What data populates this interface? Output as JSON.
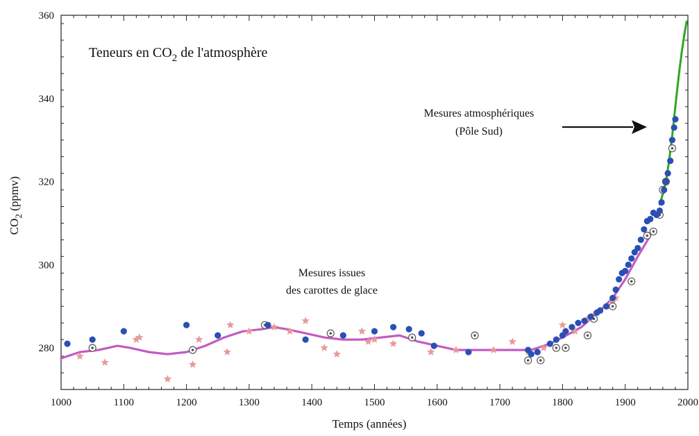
{
  "chart_data": {
    "type": "scatter",
    "title": "Teneurs en CO2 de l'atmosphère",
    "title_main": "Teneurs en CO",
    "title_sub": "2",
    "title_rest": " de l'atmosphère",
    "xlabel": "Temps (années)",
    "ylabel": "CO2 (ppmv)",
    "ylabel_main": "CO",
    "ylabel_sub": "2",
    "ylabel_rest": " (ppmv)",
    "xlim": [
      1000,
      2000
    ],
    "ylim": [
      270,
      360
    ],
    "x_ticks": [
      1000,
      1100,
      1200,
      1300,
      1400,
      1500,
      1600,
      1700,
      1800,
      1900,
      2000
    ],
    "y_ticks": [
      280,
      300,
      320,
      340,
      360
    ],
    "grid": false,
    "annotations": [
      {
        "lines": [
          "Mesures atmosphériques",
          "(Pôle Sud)"
        ],
        "arrow": true
      },
      {
        "lines": [
          "Mesures issues",
          "des carottes de glace"
        ],
        "arrow": false
      }
    ],
    "series": [
      {
        "marker": "filled-circle",
        "color": "#2a4fb5",
        "points": [
          [
            1010,
            281
          ],
          [
            1050,
            282
          ],
          [
            1100,
            284
          ],
          [
            1200,
            285.5
          ],
          [
            1250,
            283
          ],
          [
            1330,
            285.5
          ],
          [
            1390,
            282
          ],
          [
            1450,
            283
          ],
          [
            1500,
            284
          ],
          [
            1530,
            285
          ],
          [
            1555,
            284.5
          ],
          [
            1575,
            283.5
          ],
          [
            1595,
            280.5
          ],
          [
            1650,
            279
          ],
          [
            1745,
            279.5
          ],
          [
            1750,
            278.5
          ],
          [
            1760,
            279
          ],
          [
            1780,
            281
          ],
          [
            1790,
            282
          ],
          [
            1800,
            283
          ],
          [
            1805,
            284
          ],
          [
            1815,
            285
          ],
          [
            1825,
            286
          ],
          [
            1835,
            286.5
          ],
          [
            1845,
            287.5
          ],
          [
            1855,
            288.5
          ],
          [
            1860,
            289
          ],
          [
            1870,
            290
          ],
          [
            1880,
            292
          ],
          [
            1885,
            294
          ],
          [
            1890,
            296.5
          ],
          [
            1895,
            298
          ],
          [
            1900,
            298.5
          ],
          [
            1905,
            300
          ],
          [
            1910,
            301.5
          ],
          [
            1915,
            303
          ],
          [
            1920,
            304
          ],
          [
            1925,
            306
          ],
          [
            1930,
            308.5
          ],
          [
            1935,
            310.5
          ],
          [
            1940,
            311
          ],
          [
            1945,
            312.5
          ],
          [
            1950,
            312
          ],
          [
            1955,
            313
          ],
          [
            1958,
            315
          ],
          [
            1962,
            318
          ],
          [
            1965,
            320
          ],
          [
            1968,
            322
          ],
          [
            1972,
            325
          ],
          [
            1975,
            330
          ],
          [
            1978,
            333
          ],
          [
            1980,
            335
          ]
        ]
      },
      {
        "marker": "open-circle-dot",
        "color": "#555555",
        "points": [
          [
            1050,
            280
          ],
          [
            1210,
            279.5
          ],
          [
            1325,
            285.5
          ],
          [
            1430,
            283.5
          ],
          [
            1560,
            282.5
          ],
          [
            1660,
            283
          ],
          [
            1745,
            277
          ],
          [
            1765,
            277
          ],
          [
            1790,
            280
          ],
          [
            1805,
            280
          ],
          [
            1840,
            283
          ],
          [
            1850,
            287
          ],
          [
            1880,
            290
          ],
          [
            1910,
            296
          ],
          [
            1935,
            307
          ],
          [
            1945,
            308
          ],
          [
            1955,
            312
          ],
          [
            1960,
            318
          ],
          [
            1965,
            320
          ],
          [
            1975,
            328
          ]
        ]
      },
      {
        "marker": "star",
        "color": "#e89a9a",
        "points": [
          [
            1030,
            278
          ],
          [
            1070,
            276.5
          ],
          [
            1120,
            282
          ],
          [
            1125,
            282.5
          ],
          [
            1170,
            272.5
          ],
          [
            1210,
            276
          ],
          [
            1220,
            282
          ],
          [
            1265,
            279
          ],
          [
            1270,
            285.5
          ],
          [
            1300,
            284
          ],
          [
            1340,
            285
          ],
          [
            1365,
            284
          ],
          [
            1390,
            286.5
          ],
          [
            1420,
            280
          ],
          [
            1440,
            278.5
          ],
          [
            1480,
            284
          ],
          [
            1490,
            281.5
          ],
          [
            1500,
            282
          ],
          [
            1530,
            281
          ],
          [
            1590,
            279
          ],
          [
            1630,
            279.5
          ],
          [
            1690,
            279.5
          ],
          [
            1720,
            281.5
          ],
          [
            1745,
            279
          ],
          [
            1770,
            280
          ],
          [
            1800,
            285.5
          ],
          [
            1820,
            284
          ],
          [
            1840,
            287
          ],
          [
            1850,
            288
          ],
          [
            1860,
            289
          ],
          [
            1870,
            290
          ],
          [
            1880,
            291
          ],
          [
            1885,
            292
          ]
        ]
      }
    ],
    "lines": [
      {
        "name": "",
        "color": "#c45bc1",
        "x": [
          1000,
          1030,
          1060,
          1090,
          1110,
          1140,
          1170,
          1200,
          1230,
          1260,
          1290,
          1320,
          1340,
          1360,
          1390,
          1420,
          1450,
          1480,
          1510,
          1540,
          1570,
          1600,
          1630,
          1660,
          1690,
          1720,
          1750,
          1780,
          1800,
          1830,
          1860,
          1880,
          1900,
          1920,
          1940
        ],
        "y": [
          277.5,
          279,
          279.5,
          280.5,
          280,
          279,
          278.5,
          279,
          280.5,
          282.5,
          284,
          284.5,
          285,
          284.5,
          283.5,
          282.5,
          282,
          282,
          282.5,
          283,
          281.5,
          280.5,
          279.5,
          279.5,
          279.5,
          279.5,
          279.5,
          281,
          282.5,
          285,
          289,
          292,
          296.5,
          302,
          307
        ]
      },
      {
        "name": "",
        "color": "#2ea81f",
        "x": [
          1955,
          1960,
          1965,
          1970,
          1975,
          1980,
          1985,
          1990,
          1995,
          1998
        ],
        "y": [
          314.5,
          317,
          320,
          325,
          331,
          338,
          345,
          351,
          356,
          358.5
        ]
      }
    ]
  }
}
